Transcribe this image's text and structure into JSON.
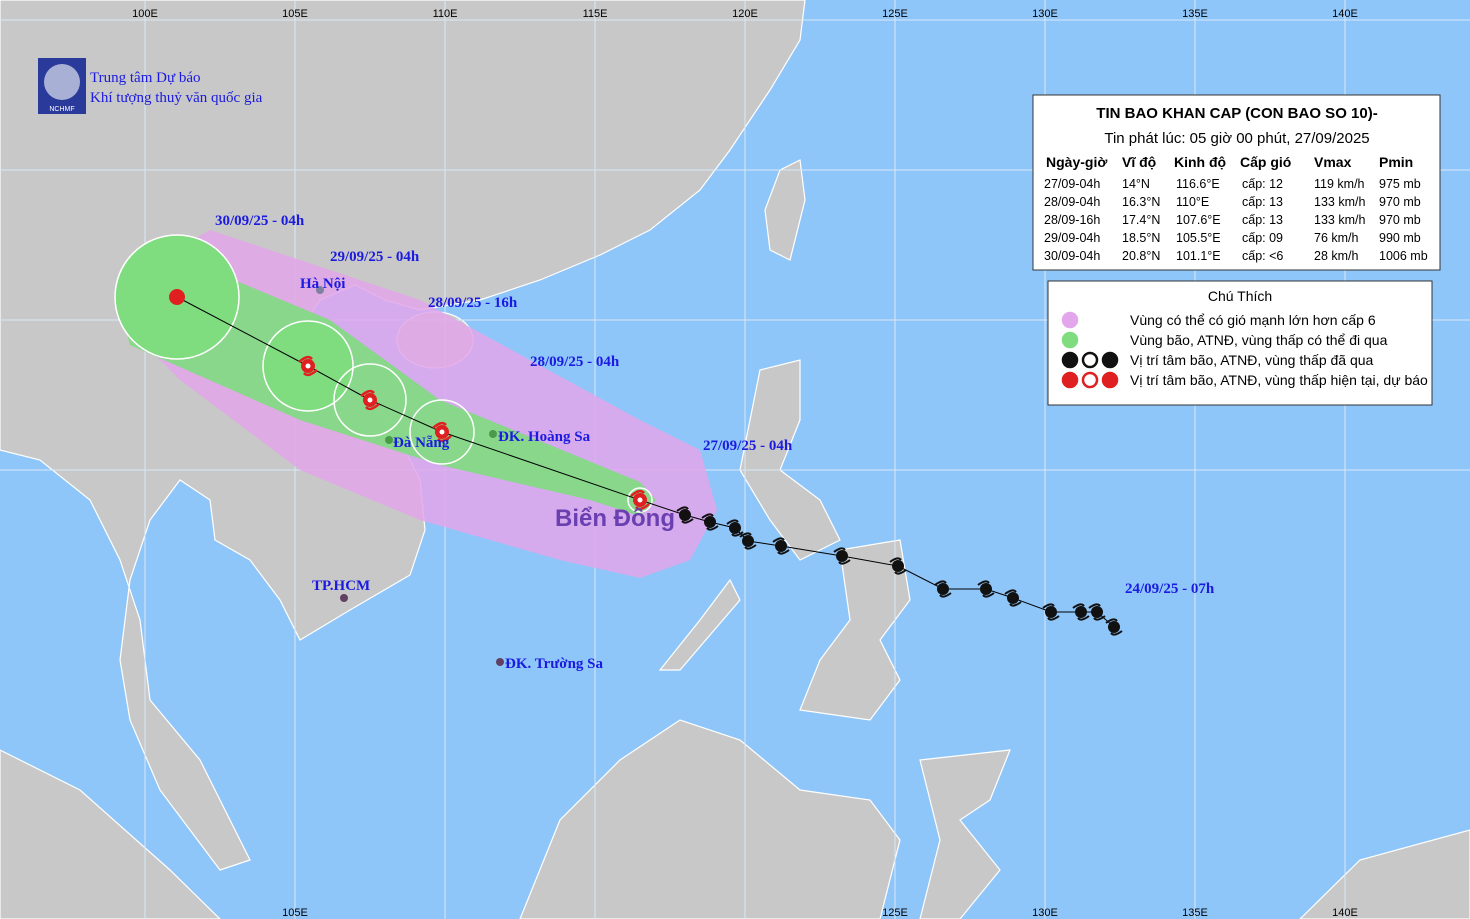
{
  "header": {
    "org_line1": "Trung tâm Dự báo",
    "org_line2": "Khí tượng thuỷ văn quốc gia",
    "logo_text": "NCHMF"
  },
  "longitudes_top": [
    "100E",
    "105E",
    "110E",
    "115E",
    "120E",
    "125E",
    "130E",
    "135E",
    "140E"
  ],
  "longitudes_bottom": [
    "105E",
    "125E",
    "130E",
    "135E",
    "140E"
  ],
  "info": {
    "title": "TIN BAO KHAN CAP (CON BAO SO 10)-",
    "issued": "Tin phát lúc: 05 giờ 00 phút, 27/09/2025",
    "columns": [
      "Ngày-giờ",
      "Vĩ độ",
      "Kinh độ",
      "Cấp gió",
      "Vmax",
      "Pmin"
    ],
    "rows": [
      [
        "27/09-04h",
        "14°N",
        "116.6°E",
        "cấp: 12",
        "119 km/h",
        "975 mb"
      ],
      [
        "28/09-04h",
        "16.3°N",
        "110°E",
        "cấp: 13",
        "133 km/h",
        "970 mb"
      ],
      [
        "28/09-16h",
        "17.4°N",
        "107.6°E",
        "cấp: 13",
        "133 km/h",
        "970 mb"
      ],
      [
        "29/09-04h",
        "18.5°N",
        "105.5°E",
        "cấp: 09",
        "76 km/h",
        "990 mb"
      ],
      [
        "30/09-04h",
        "20.8°N",
        "101.1°E",
        "cấp: <6",
        "28 km/h",
        "1006 mb"
      ]
    ]
  },
  "legend": {
    "title": "Chú Thích",
    "items": [
      "Vùng có thể có gió mạnh lớn hơn cấp 6",
      "Vùng bão, ATNĐ, vùng thấp có thể đi qua",
      "Vị trí tâm bão, ATNĐ, vùng thấp đã qua",
      "Vị trí tâm bão, ATNĐ, vùng thấp hiện tại, dự báo"
    ]
  },
  "time_labels": [
    "30/09/25 - 04h",
    "29/09/25 - 04h",
    "28/09/25 - 16h",
    "28/09/25 - 04h",
    "27/09/25 - 04h",
    "24/09/25 - 07h"
  ],
  "places": [
    "Hà Nội",
    "Đà Nẵng",
    "ĐK. Hoàng Sa",
    "TP.HCM",
    "ĐK. Trường Sa"
  ],
  "sea_label": "Biển Đông"
}
